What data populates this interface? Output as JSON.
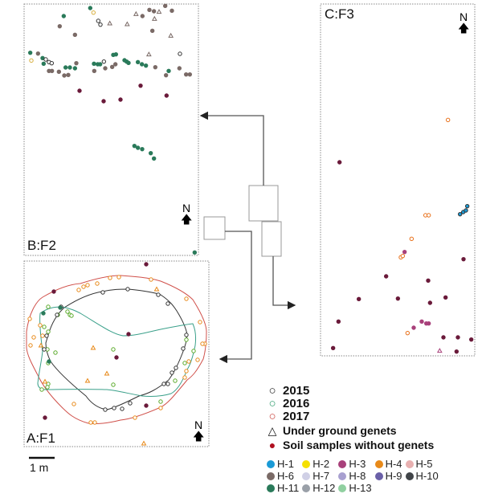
{
  "panels": {
    "a": {
      "label": "A:F1"
    },
    "b": {
      "label": "B:F2"
    },
    "c": {
      "label": "C:F3"
    }
  },
  "north_label": "N",
  "scale_bar": {
    "label": "1 m"
  },
  "legend": {
    "years": [
      {
        "label": "2015",
        "color": "#222222"
      },
      {
        "label": "2016",
        "color": "#2a9a6a"
      },
      {
        "label": "2017",
        "color": "#c8403a"
      }
    ],
    "underground": {
      "label": "Under ground genets",
      "symbol": "triangle-outline"
    },
    "soil": {
      "label": "Soil samples without genets",
      "color": "#b01020",
      "symbol": "dark-red-dot"
    },
    "haplotypes": [
      {
        "label": "H-1",
        "color": "#1a9ad6"
      },
      {
        "label": "H-2",
        "color": "#f5e000"
      },
      {
        "label": "H-3",
        "color": "#a8407a"
      },
      {
        "label": "H-4",
        "color": "#e88a1a"
      },
      {
        "label": "H-5",
        "color": "#e8b0b0"
      },
      {
        "label": "H-6",
        "color": "#7a6a66"
      },
      {
        "label": "H-7",
        "color": "#d0d0e6"
      },
      {
        "label": "H-8",
        "color": "#a8a0d0"
      },
      {
        "label": "H-9",
        "color": "#6a60a8"
      },
      {
        "label": "H-10",
        "color": "#404448"
      },
      {
        "label": "H-11",
        "color": "#2a7a5a"
      },
      {
        "label": "H-12",
        "color": "#9aa0a8"
      },
      {
        "label": "H-13",
        "color": "#90d0a0"
      }
    ]
  }
}
